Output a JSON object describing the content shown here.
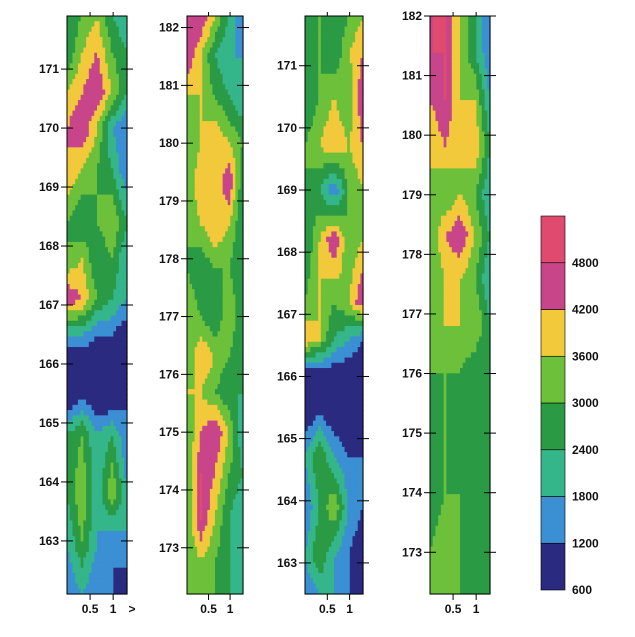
{
  "chart_data": {
    "type": "heatmap",
    "title": "",
    "colorbar": {
      "boundaries": [
        600,
        1200,
        1800,
        2400,
        3000,
        3600,
        4200,
        4800,
        5400
      ],
      "labels": [
        "600",
        "1200",
        "1800",
        "2400",
        "3000",
        "3600",
        "4200",
        "4800"
      ],
      "colors": [
        "#2a2a80",
        "#3b8fd3",
        "#35b58a",
        "#2a9a45",
        "#6cc03a",
        "#f1c93a",
        "#c8458a",
        "#e04a6e"
      ]
    },
    "panels": [
      {
        "id": "panel-1",
        "ylim": [
          162.1,
          171.9
        ],
        "xlim": [
          0,
          1.3
        ],
        "yticks": [
          163,
          164,
          165,
          166,
          167,
          168,
          169,
          170,
          171
        ],
        "xticks": [
          "0.5",
          "1"
        ],
        "extra_xtick_label": ">",
        "profile": [
          [
            162.1,
            [
              1200,
              1800,
              1200,
              1200,
              600
            ]
          ],
          [
            163.0,
            [
              1800,
              3000,
              1800,
              1200,
              1800
            ]
          ],
          [
            163.8,
            [
              2400,
              3600,
              1800,
              3600,
              1800
            ]
          ],
          [
            164.8,
            [
              2400,
              3000,
              1800,
              2400,
              1200
            ]
          ],
          [
            165.4,
            [
              600,
              1200,
              600,
              600,
              1200
            ]
          ],
          [
            166.0,
            [
              600,
              600,
              600,
              600,
              600
            ]
          ],
          [
            166.5,
            [
              1800,
              1800,
              1200,
              1200,
              600
            ]
          ],
          [
            167.1,
            [
              4800,
              4200,
              3000,
              2400,
              1800
            ]
          ],
          [
            167.8,
            [
              3000,
              3600,
              2400,
              3000,
              1800
            ]
          ],
          [
            168.4,
            [
              3000,
              2400,
              3000,
              3600,
              2400
            ]
          ],
          [
            169.3,
            [
              4200,
              3600,
              3000,
              2400,
              1200
            ]
          ],
          [
            170.0,
            [
              4200,
              4800,
              3600,
              1800,
              1200
            ]
          ],
          [
            170.6,
            [
              3600,
              4200,
              4800,
              3600,
              2400
            ]
          ],
          [
            171.3,
            [
              2400,
              3600,
              4200,
              3000,
              2400
            ]
          ],
          [
            171.9,
            [
              2400,
              3000,
              3600,
              2400,
              1800
            ]
          ]
        ]
      },
      {
        "id": "panel-2",
        "ylim": [
          172.2,
          182.2
        ],
        "xlim": [
          0,
          1.3
        ],
        "yticks": [
          173,
          174,
          175,
          176,
          177,
          178,
          179,
          180,
          181,
          182
        ],
        "xticks": [
          "0.5",
          "1"
        ],
        "profile": [
          [
            172.2,
            [
              3600,
              3000,
              3000,
              2400,
              1800
            ]
          ],
          [
            172.8,
            [
              3000,
              3600,
              3000,
              2400,
              1800
            ]
          ],
          [
            173.5,
            [
              3000,
              4800,
              3600,
              2400,
              1800
            ]
          ],
          [
            174.3,
            [
              3000,
              4800,
              4200,
              3000,
              2400
            ]
          ],
          [
            175.0,
            [
              3000,
              4200,
              4800,
              3600,
              1800
            ]
          ],
          [
            175.7,
            [
              3600,
              3600,
              3000,
              2400,
              2400
            ]
          ],
          [
            176.3,
            [
              3000,
              4200,
              3600,
              3000,
              2400
            ]
          ],
          [
            177.0,
            [
              3600,
              3000,
              2400,
              3600,
              2400
            ]
          ],
          [
            177.8,
            [
              3000,
              2400,
              3000,
              3000,
              2400
            ]
          ],
          [
            178.6,
            [
              3000,
              3600,
              4200,
              3600,
              2400
            ]
          ],
          [
            179.3,
            [
              3000,
              4200,
              3600,
              4800,
              2400
            ]
          ],
          [
            180.0,
            [
              3000,
              3600,
              4200,
              3600,
              3000
            ]
          ],
          [
            180.8,
            [
              3600,
              3600,
              3000,
              2400,
              1800
            ]
          ],
          [
            181.5,
            [
              4800,
              3600,
              2400,
              1800,
              1800
            ]
          ],
          [
            182.2,
            [
              4800,
              4800,
              3600,
              2400,
              1200
            ]
          ]
        ]
      },
      {
        "id": "panel-3",
        "ylim": [
          162.5,
          171.8
        ],
        "xlim": [
          0,
          1.3
        ],
        "yticks": [
          163,
          164,
          165,
          166,
          167,
          168,
          169,
          170,
          171
        ],
        "xticks": [
          "0.5",
          "1"
        ],
        "profile": [
          [
            162.5,
            [
              1200,
              1800,
              1800,
              1200,
              1200
            ]
          ],
          [
            163.1,
            [
              1800,
              3000,
              1800,
              1200,
              600
            ]
          ],
          [
            163.9,
            [
              1200,
              2400,
              3600,
              1800,
              1200
            ]
          ],
          [
            164.7,
            [
              1800,
              3000,
              1800,
              1200,
              1200
            ]
          ],
          [
            165.4,
            [
              600,
              1200,
              600,
              600,
              1200
            ]
          ],
          [
            166.0,
            [
              600,
              600,
              600,
              600,
              600
            ]
          ],
          [
            166.6,
            [
              4200,
              3600,
              2400,
              1800,
              1200
            ]
          ],
          [
            167.2,
            [
              3000,
              3600,
              3000,
              3600,
              4800
            ]
          ],
          [
            168.2,
            [
              2400,
              3600,
              4800,
              3000,
              3600
            ]
          ],
          [
            169.0,
            [
              3000,
              2400,
              1200,
              3000,
              3600
            ]
          ],
          [
            169.7,
            [
              3000,
              3600,
              4200,
              3600,
              4200
            ]
          ],
          [
            170.5,
            [
              2400,
              3000,
              3600,
              3000,
              4800
            ]
          ],
          [
            171.2,
            [
              2400,
              3000,
              2400,
              3600,
              4200
            ]
          ],
          [
            171.8,
            [
              2400,
              3000,
              2400,
              3000,
              3600
            ]
          ]
        ]
      },
      {
        "id": "panel-4",
        "ylim": [
          172.3,
          182.0
        ],
        "xlim": [
          0,
          1.3
        ],
        "yticks": [
          173,
          174,
          175,
          176,
          177,
          178,
          179,
          180,
          181,
          182
        ],
        "xticks": [
          "0.5",
          "1"
        ],
        "profile": [
          [
            172.3,
            [
              3000,
              3000,
              3000,
              2400,
              2400
            ]
          ],
          [
            173.0,
            [
              3000,
              3600,
              3000,
              2400,
              2400
            ]
          ],
          [
            174.0,
            [
              2400,
              3000,
              3000,
              2400,
              3000
            ]
          ],
          [
            175.0,
            [
              2400,
              3000,
              2400,
              2400,
              3000
            ]
          ],
          [
            176.0,
            [
              3000,
              3000,
              3000,
              2400,
              2400
            ]
          ],
          [
            176.8,
            [
              3000,
              3600,
              3600,
              3600,
              2400
            ]
          ],
          [
            177.6,
            [
              3000,
              3600,
              3600,
              3000,
              1800
            ]
          ],
          [
            178.3,
            [
              3000,
              4200,
              4800,
              3600,
              2400
            ]
          ],
          [
            179.0,
            [
              3600,
              3000,
              3600,
              3000,
              1800
            ]
          ],
          [
            179.8,
            [
              3600,
              4200,
              3600,
              4200,
              2400
            ]
          ],
          [
            180.6,
            [
              4200,
              4800,
              3600,
              3600,
              1800
            ]
          ],
          [
            181.4,
            [
              4800,
              4800,
              3600,
              2400,
              1200
            ]
          ],
          [
            182.0,
            [
              4800,
              4800,
              3600,
              2400,
              1200
            ]
          ]
        ]
      }
    ]
  }
}
